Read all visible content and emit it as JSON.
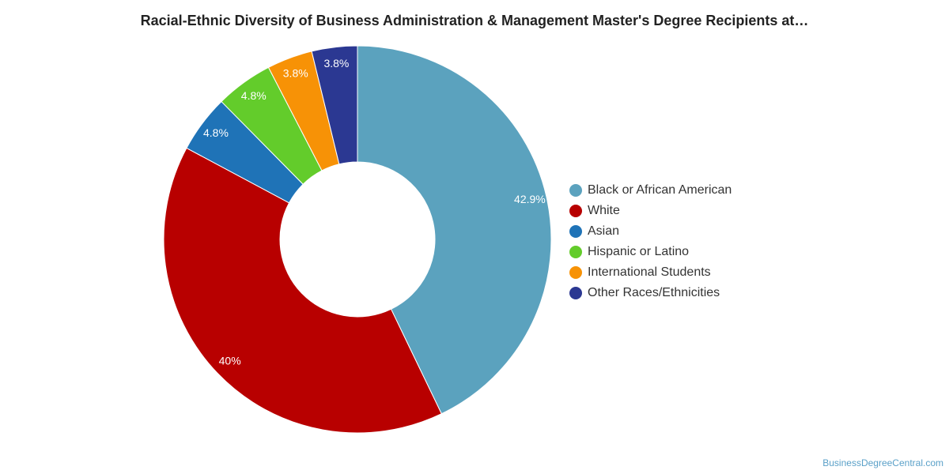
{
  "chart_data": {
    "type": "pie",
    "title": "Racial-Ethnic Diversity of Business Administration & Management Master's Degree Recipients at…",
    "legend_position": "right",
    "slices": [
      {
        "name": "Black or African American",
        "value": 42.9,
        "label": "42.9%",
        "color": "#5ba2be"
      },
      {
        "name": "White",
        "value": 40.0,
        "label": "40%",
        "color": "#b80000"
      },
      {
        "name": "Asian",
        "value": 4.8,
        "label": "4.8%",
        "color": "#1f73b7"
      },
      {
        "name": "Hispanic or Latino",
        "value": 4.8,
        "label": "4.8%",
        "color": "#63cc2b"
      },
      {
        "name": "International Students",
        "value": 3.8,
        "label": "3.8%",
        "color": "#f79206"
      },
      {
        "name": "Other Races/Ethnicities",
        "value": 3.8,
        "label": "3.8%",
        "color": "#2b3892"
      }
    ]
  },
  "source": {
    "credit": "BusinessDegreeCentral.com"
  }
}
